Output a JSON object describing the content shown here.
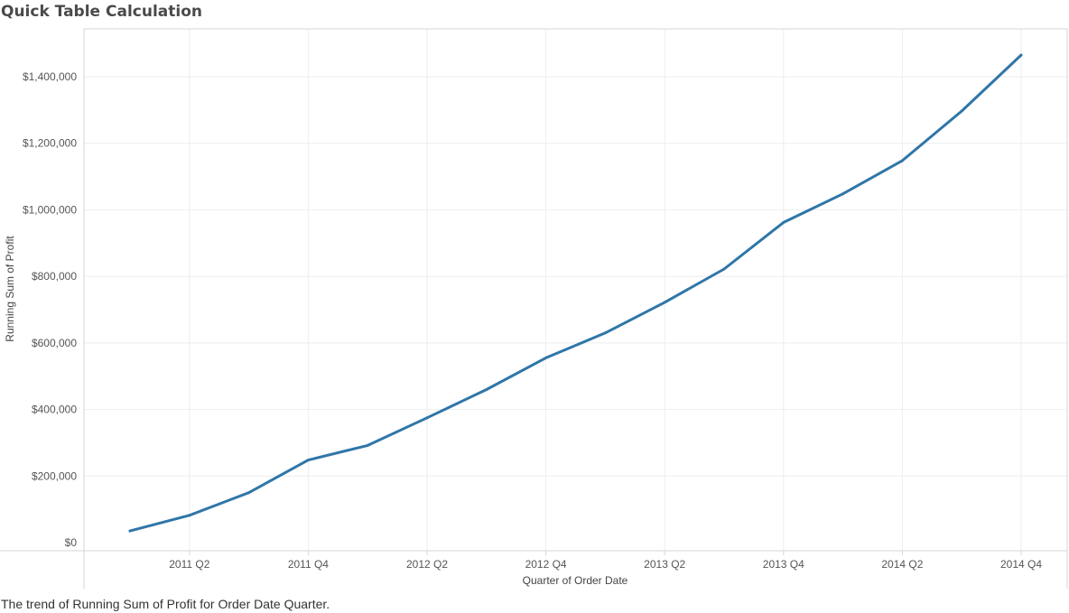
{
  "title": "Quick Table Calculation",
  "caption": "The trend of Running Sum of Profit for Order Date Quarter.",
  "colors": {
    "line": "#2f76a8",
    "grid": "#eeeeee",
    "axis": "#d4d4d4"
  },
  "chart_data": {
    "type": "line",
    "xlabel": "Quarter of Order Date",
    "ylabel": "Running Sum of Profit",
    "ylim": [
      0,
      1540000
    ],
    "yticks": [
      {
        "value": 0,
        "label": "$0"
      },
      {
        "value": 200000,
        "label": "$200,000"
      },
      {
        "value": 400000,
        "label": "$400,000"
      },
      {
        "value": 600000,
        "label": "$600,000"
      },
      {
        "value": 800000,
        "label": "$800,000"
      },
      {
        "value": 1000000,
        "label": "$1,000,000"
      },
      {
        "value": 1200000,
        "label": "$1,200,000"
      },
      {
        "value": 1400000,
        "label": "$1,400,000"
      }
    ],
    "x": [
      "2011 Q1",
      "2011 Q2",
      "2011 Q3",
      "2011 Q4",
      "2012 Q1",
      "2012 Q2",
      "2012 Q3",
      "2012 Q4",
      "2013 Q1",
      "2013 Q2",
      "2013 Q3",
      "2013 Q4",
      "2014 Q1",
      "2014 Q2",
      "2014 Q3",
      "2014 Q4"
    ],
    "xtick_labels": [
      "2011 Q2",
      "2011 Q4",
      "2012 Q2",
      "2012 Q4",
      "2013 Q2",
      "2013 Q4",
      "2014 Q2",
      "2014 Q4"
    ],
    "series": [
      {
        "values": [
          35000,
          82000,
          150000,
          248000,
          292000,
          375000,
          460000,
          555000,
          630000,
          722000,
          822000,
          962000,
          1048000,
          1148000,
          1297000,
          1465000
        ]
      }
    ],
    "grid": true,
    "legend": "none"
  }
}
